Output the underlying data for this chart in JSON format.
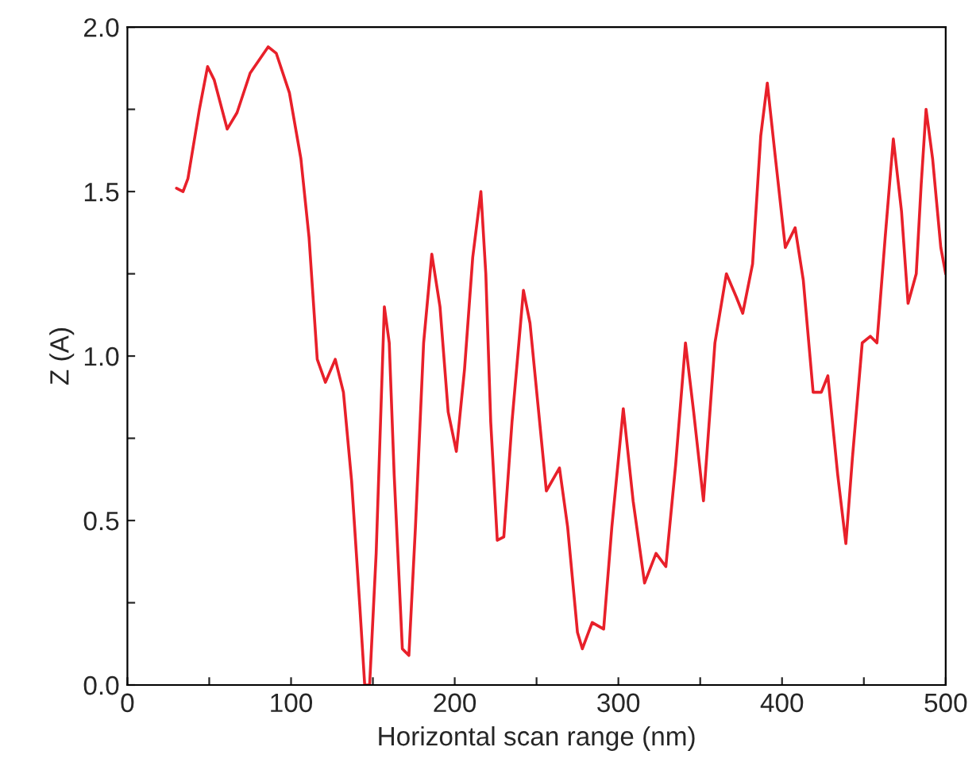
{
  "chart_data": {
    "type": "line",
    "xlabel": "Horizontal scan range (nm)",
    "ylabel": "Z (A)",
    "xlim": [
      0,
      500
    ],
    "ylim": [
      0.0,
      2.0
    ],
    "xticks": [
      0,
      {
        "value": 50,
        "label": null
      },
      100,
      {
        "value": 150,
        "label": null
      },
      200,
      {
        "value": 250,
        "label": null
      },
      300,
      {
        "value": 350,
        "label": null
      },
      400,
      {
        "value": 450,
        "label": null
      },
      500
    ],
    "yticks": [
      {
        "value": 0,
        "label": "0.0"
      },
      {
        "value": 0.25,
        "label": null
      },
      {
        "value": 0.5,
        "label": "0.5"
      },
      {
        "value": 0.75,
        "label": null
      },
      {
        "value": 1.0,
        "label": "1.0"
      },
      {
        "value": 1.25,
        "label": null
      },
      {
        "value": 1.5,
        "label": "1.5"
      },
      {
        "value": 1.75,
        "label": null
      },
      {
        "value": 2.0,
        "label": "2.0"
      }
    ],
    "grid": false,
    "legend": false,
    "series": [
      {
        "color": "#e8202a",
        "x": [
          30,
          34,
          37,
          44,
          49,
          53,
          61,
          67,
          75,
          86,
          91,
          99,
          106,
          111,
          116,
          121,
          127,
          132,
          137,
          142,
          145,
          148,
          152,
          157,
          160,
          163,
          168,
          172,
          176,
          181,
          186,
          191,
          196,
          201,
          206,
          211,
          216,
          219,
          222,
          226,
          230,
          235,
          242,
          246,
          256,
          264,
          269,
          275,
          278,
          284,
          291,
          296,
          303,
          309,
          316,
          323,
          329,
          335,
          341,
          346,
          352,
          359,
          366,
          372,
          376,
          382,
          387,
          391,
          396,
          402,
          408,
          413,
          419,
          424,
          428,
          434,
          439,
          443,
          449,
          454,
          458,
          463,
          468,
          473,
          477,
          482,
          485,
          488,
          492,
          497,
          500
        ],
        "values": [
          1.51,
          1.5,
          1.54,
          1.75,
          1.88,
          1.84,
          1.69,
          1.74,
          1.86,
          1.94,
          1.92,
          1.8,
          1.6,
          1.36,
          0.99,
          0.92,
          0.99,
          0.89,
          0.62,
          0.24,
          0.0,
          0.0,
          0.4,
          1.15,
          1.04,
          0.64,
          0.11,
          0.09,
          0.48,
          1.04,
          1.31,
          1.15,
          0.83,
          0.71,
          0.96,
          1.3,
          1.5,
          1.25,
          0.8,
          0.44,
          0.45,
          0.8,
          1.2,
          1.1,
          0.59,
          0.66,
          0.48,
          0.16,
          0.11,
          0.19,
          0.17,
          0.48,
          0.84,
          0.56,
          0.31,
          0.4,
          0.36,
          0.67,
          1.04,
          0.83,
          0.56,
          1.04,
          1.25,
          1.18,
          1.13,
          1.28,
          1.67,
          1.83,
          1.6,
          1.33,
          1.39,
          1.23,
          0.89,
          0.89,
          0.94,
          0.64,
          0.43,
          0.69,
          1.04,
          1.06,
          1.04,
          1.36,
          1.66,
          1.44,
          1.16,
          1.25,
          1.52,
          1.75,
          1.6,
          1.33,
          1.25
        ]
      }
    ]
  }
}
